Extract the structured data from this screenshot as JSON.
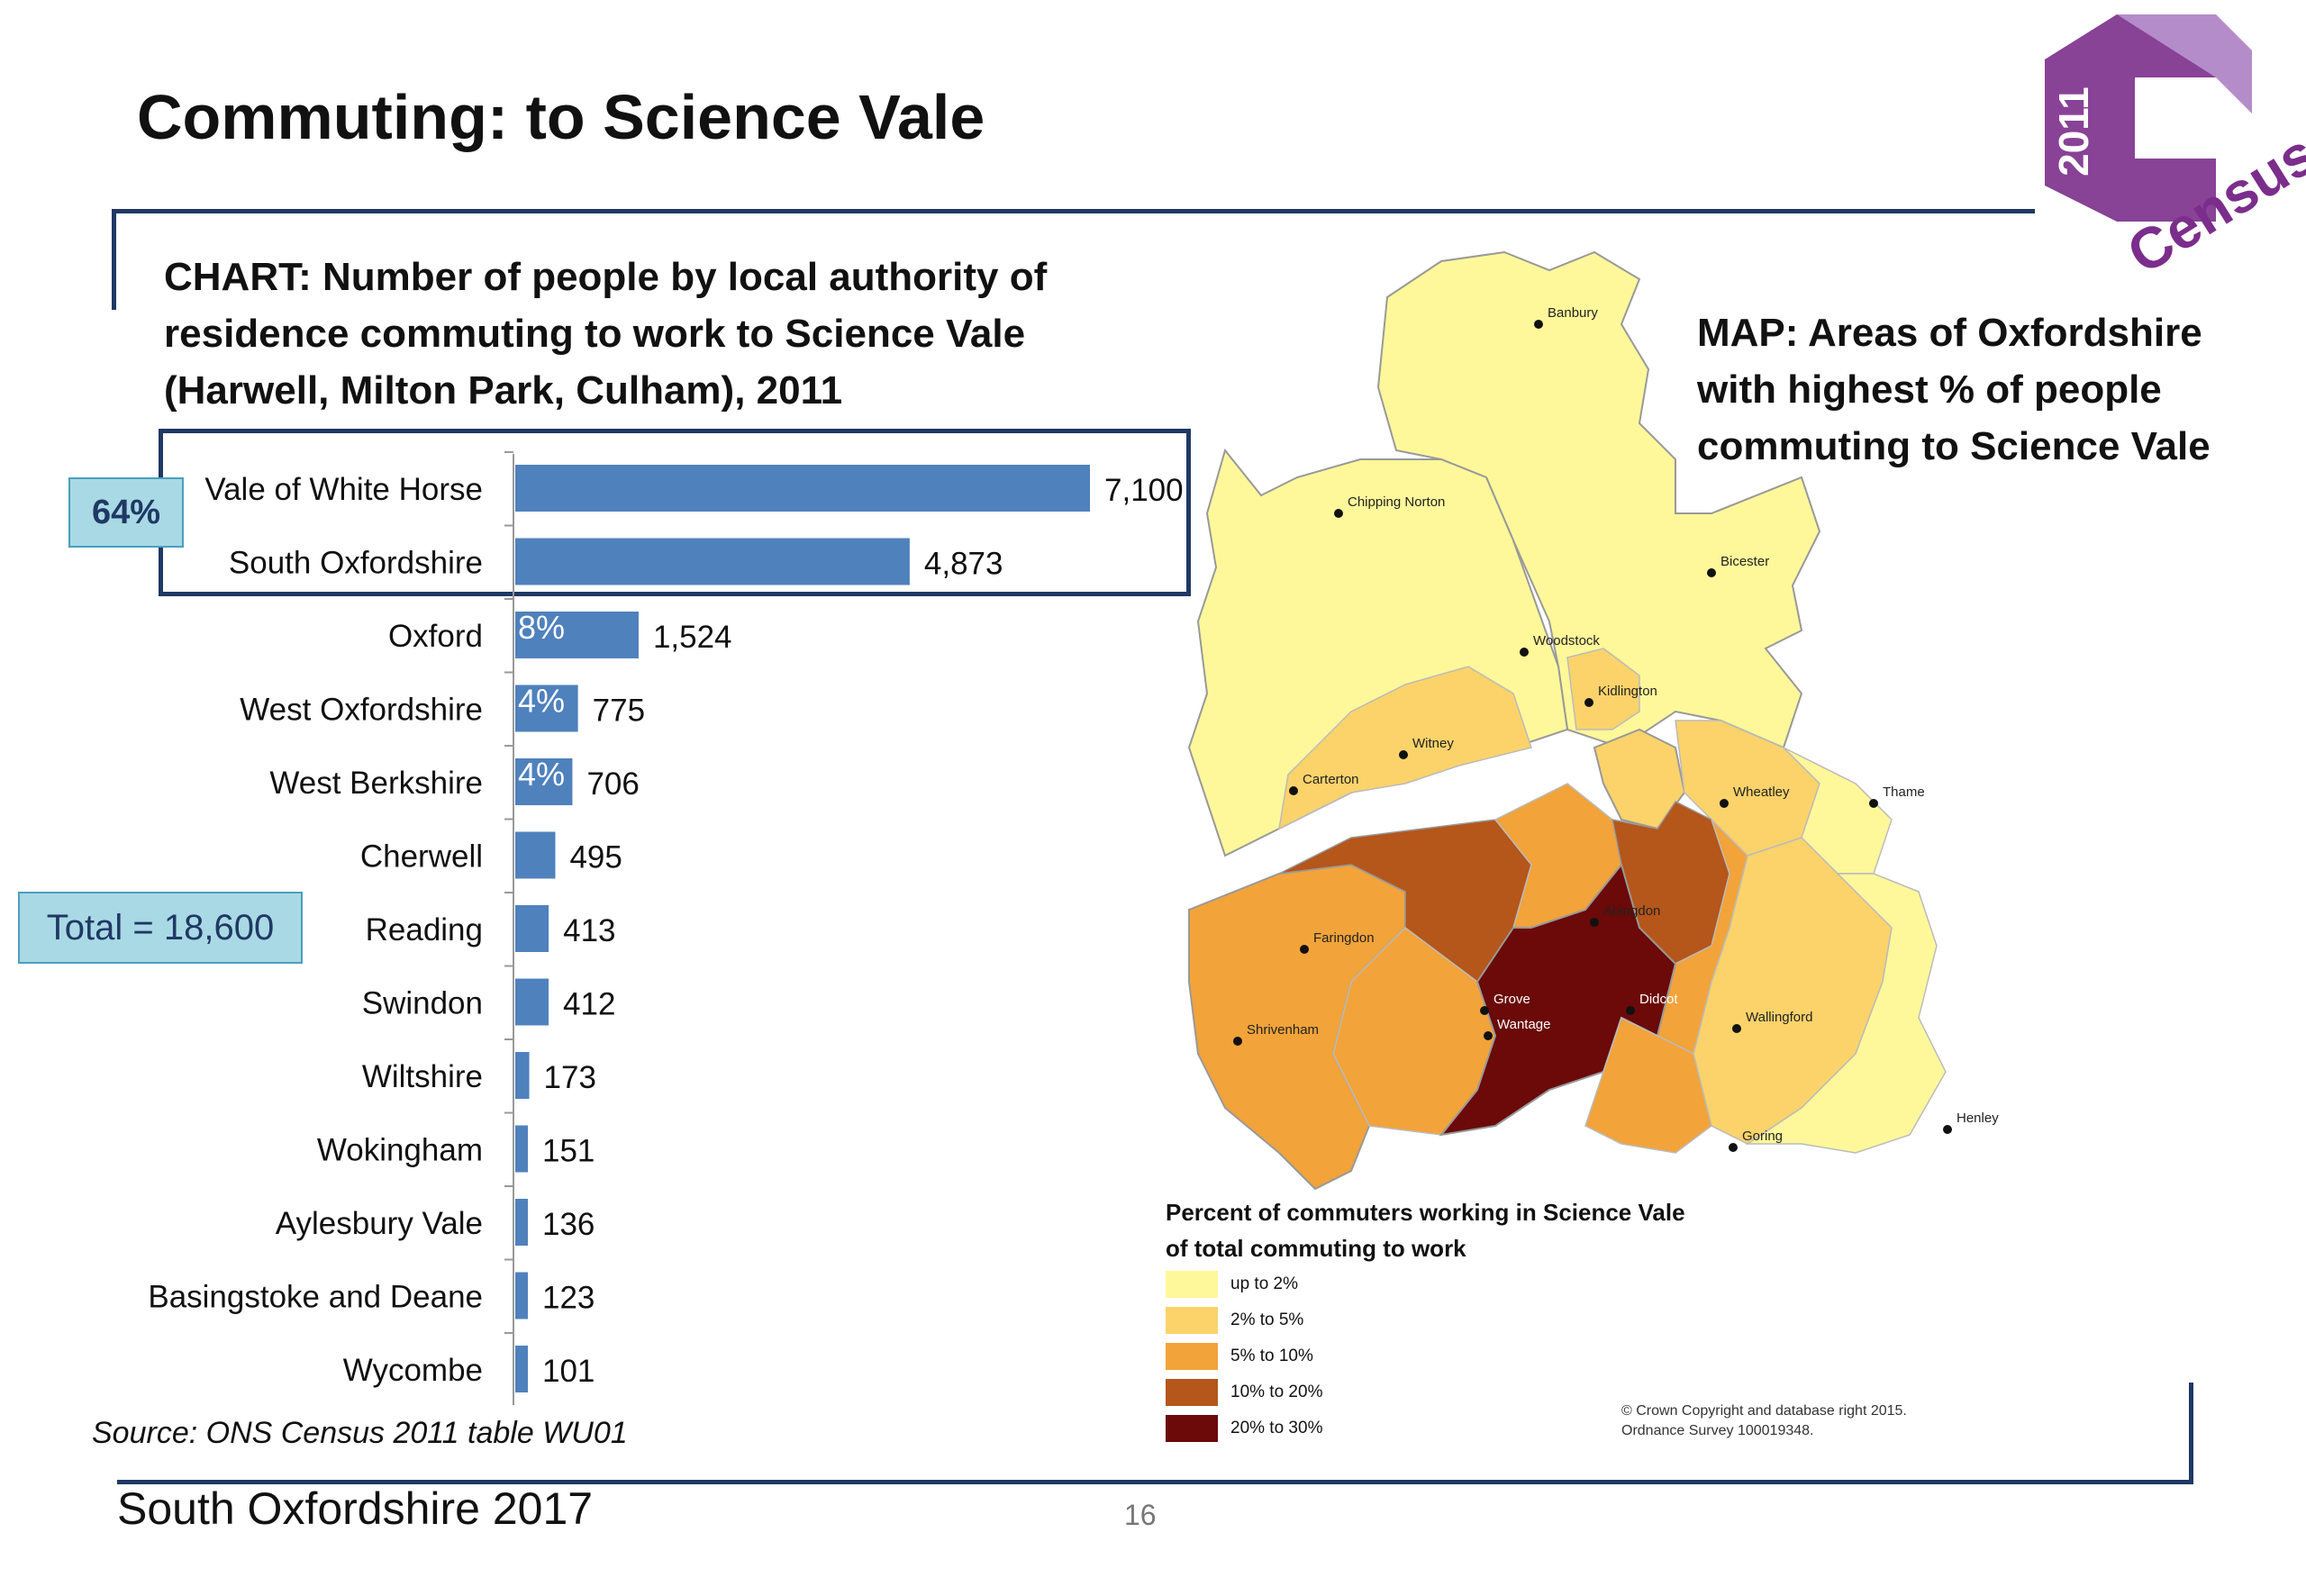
{
  "slide": {
    "title": "Commuting: to Science Vale",
    "chart_title": "CHART: Number of people by local authority of residence commuting to work to Science Vale (Harwell, Milton Park, Culham), 2011",
    "map_title": "MAP: Areas of Oxfordshire with highest % of people commuting to Science Vale",
    "source": "Source: ONS Census 2011 table  WU01",
    "footer": "South Oxfordshire  2017",
    "page_number": "16"
  },
  "callouts": {
    "group_share": "64%",
    "total": "Total = 18,600"
  },
  "chart_data": {
    "type": "bar",
    "orientation": "horizontal",
    "title": "CHART: Number of people by local authority of residence commuting to work to Science Vale (Harwell, Milton Park, Culham), 2011",
    "categories": [
      "Vale of White Horse",
      "South Oxfordshire",
      "Oxford",
      "West Oxfordshire",
      "West Berkshire",
      "Cherwell",
      "Reading",
      "Swindon",
      "Wiltshire",
      "Wokingham",
      "Aylesbury Vale",
      "Basingstoke and Deane",
      "Wycombe"
    ],
    "values": [
      7100,
      4873,
      1524,
      775,
      706,
      495,
      413,
      412,
      173,
      151,
      136,
      123,
      101
    ],
    "value_labels": [
      "7,100",
      "4,873",
      "1,524",
      "775",
      "706",
      "495",
      "413",
      "412",
      "173",
      "151",
      "136",
      "123",
      "101"
    ],
    "bar_percent_labels": [
      "",
      "",
      "8%",
      "4%",
      "4%",
      "",
      "",
      "",
      "",
      "",
      "",
      "",
      ""
    ],
    "bar_color": "#4f81bd",
    "xlim": [
      0,
      7100
    ],
    "grid": false,
    "legend": "none"
  },
  "map": {
    "legend_title_line1": "Percent of commuters working in Science Vale",
    "legend_title_line2": "of total commuting to work",
    "legend": [
      {
        "label": "up to 2%",
        "color": "#fff89a"
      },
      {
        "label": "2% to 5%",
        "color": "#fcd36a"
      },
      {
        "label": "5% to 10%",
        "color": "#f2a33a"
      },
      {
        "label": "10% to 20%",
        "color": "#b5561a"
      },
      {
        "label": "20% to 30%",
        "color": "#6b0a08"
      }
    ],
    "towns": [
      "Banbury",
      "Chipping Norton",
      "Bicester",
      "Woodstock",
      "Kidlington",
      "Witney",
      "Carterton",
      "Wheatley",
      "Thame",
      "Abingdon",
      "Faringdon",
      "Grove",
      "Wantage",
      "Didcot",
      "Wallingford",
      "Shrivenham",
      "Henley",
      "Goring"
    ],
    "copyright": "© Crown Copyright and database right 2015.\nOrdnance Survey 100019348."
  },
  "logo": {
    "year": "2011",
    "word": "Census",
    "color": "#7b2d8b"
  }
}
